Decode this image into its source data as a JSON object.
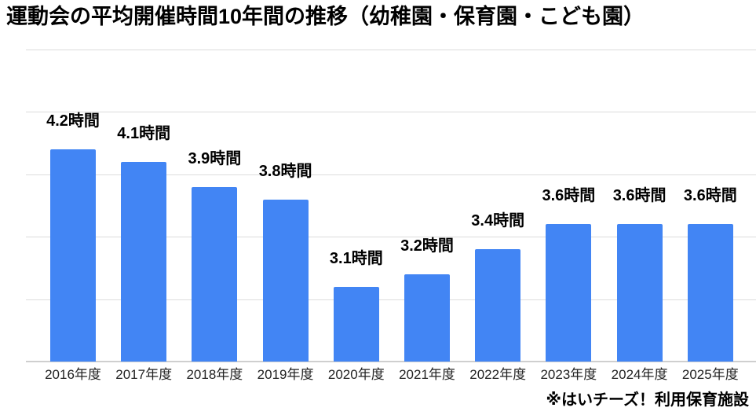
{
  "page": {
    "title": "運動会の平均開催時間10年間の推移（幼稚園・保育園・こども園）",
    "footnote": "※はいチーズ！利用保育施設"
  },
  "chart_data": {
    "type": "bar",
    "title": "運動会の平均開催時間10年間の推移（幼稚園・保育園・こども園）",
    "categories": [
      "2016年度",
      "2017年度",
      "2018年度",
      "2019年度",
      "2020年度",
      "2021年度",
      "2022年度",
      "2023年度",
      "2024年度",
      "2025年度"
    ],
    "values": [
      4.2,
      4.1,
      3.9,
      3.8,
      3.1,
      3.2,
      3.4,
      3.6,
      3.6,
      3.6
    ],
    "annotations": [
      "4.2時間",
      "4.1時間",
      "3.9時間",
      "3.8時間",
      "3.1時間",
      "3.2時間",
      "3.4時間",
      "3.6時間",
      "3.6時間",
      "3.6時間"
    ],
    "unit": "時間",
    "xlabel": "",
    "ylabel": "",
    "ylim": [
      2.5,
      5.0
    ],
    "gridline_step": 0.5,
    "grid": true,
    "y_tick_labels_visible": false,
    "legend": "none",
    "footnote": "※はいチーズ！利用保育施設"
  },
  "colors": {
    "bar": "#4285F4",
    "gridline": "#dcdcdc",
    "axis_line": "#cfcfcf",
    "title_text": "#000000",
    "annotation_text": "#000000",
    "axis_label_text": "#222222",
    "background": "#ffffff"
  }
}
